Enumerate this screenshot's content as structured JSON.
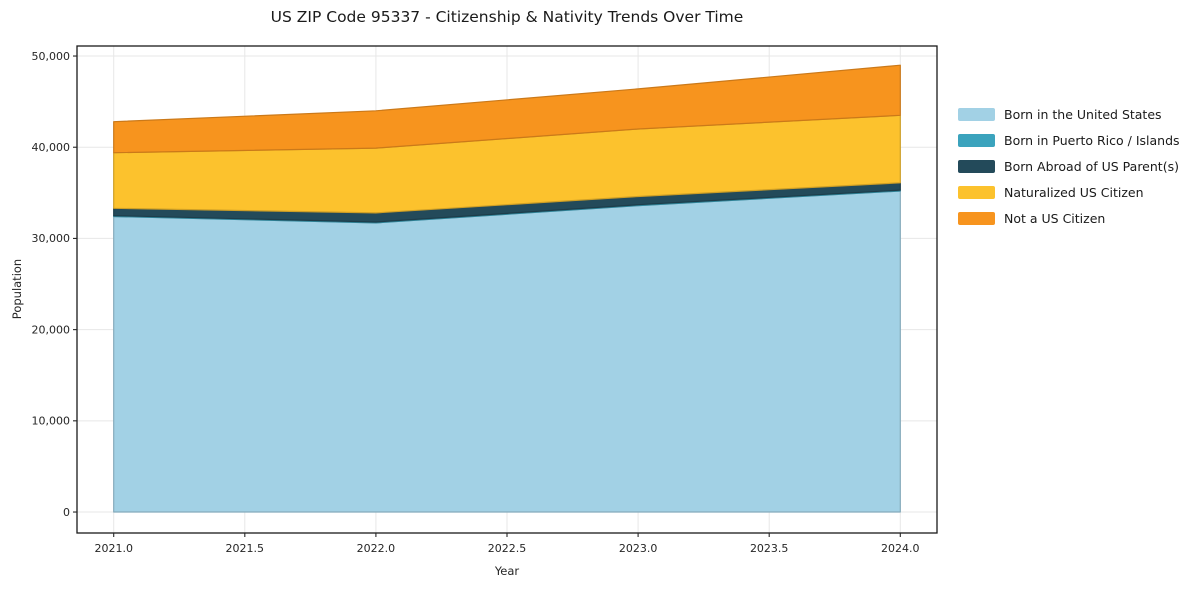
{
  "title": "US ZIP Code 95337 - Citizenship & Nativity Trends Over Time",
  "chart_data": {
    "type": "area",
    "stacked": true,
    "x": [
      2021,
      2022,
      2023,
      2024
    ],
    "series": [
      {
        "name": "Born in the United States",
        "color": "#a2d1e5",
        "values": [
          32400,
          31700,
          33600,
          35200
        ]
      },
      {
        "name": "Born in Puerto Rico / Islands",
        "color": "#3ba3bd",
        "values": [
          100,
          100,
          100,
          100
        ]
      },
      {
        "name": "Born Abroad of US Parent(s)",
        "color": "#234a5a",
        "values": [
          800,
          1000,
          900,
          800
        ]
      },
      {
        "name": "Naturalized US Citizen",
        "color": "#fcc22d",
        "values": [
          6100,
          7100,
          7400,
          7400
        ]
      },
      {
        "name": "Not a US Citizen",
        "color": "#f7941e",
        "values": [
          3400,
          4100,
          4400,
          5500
        ]
      }
    ],
    "totals": [
      42800,
      44000,
      46400,
      49000
    ],
    "xlabel": "Year",
    "ylabel": "Population",
    "xlim": [
      2020.86,
      2024.14
    ],
    "ylim": [
      -2300,
      51100
    ],
    "xticks": [
      2021.0,
      2021.5,
      2022.0,
      2022.5,
      2023.0,
      2023.5,
      2024.0
    ],
    "xtick_labels": [
      "2021.0",
      "2021.5",
      "2022.0",
      "2022.5",
      "2023.0",
      "2023.5",
      "2024.0"
    ],
    "yticks": [
      0,
      10000,
      20000,
      30000,
      40000,
      50000
    ],
    "ytick_labels": [
      "0",
      "10,000",
      "20,000",
      "30,000",
      "40,000",
      "50,000"
    ],
    "grid": true,
    "legend_position": "right"
  },
  "style": {
    "grid_color": "#e7e7e7",
    "frame_color": "#1a1a1a",
    "tick_color": "#262626",
    "background": "#ffffff"
  }
}
